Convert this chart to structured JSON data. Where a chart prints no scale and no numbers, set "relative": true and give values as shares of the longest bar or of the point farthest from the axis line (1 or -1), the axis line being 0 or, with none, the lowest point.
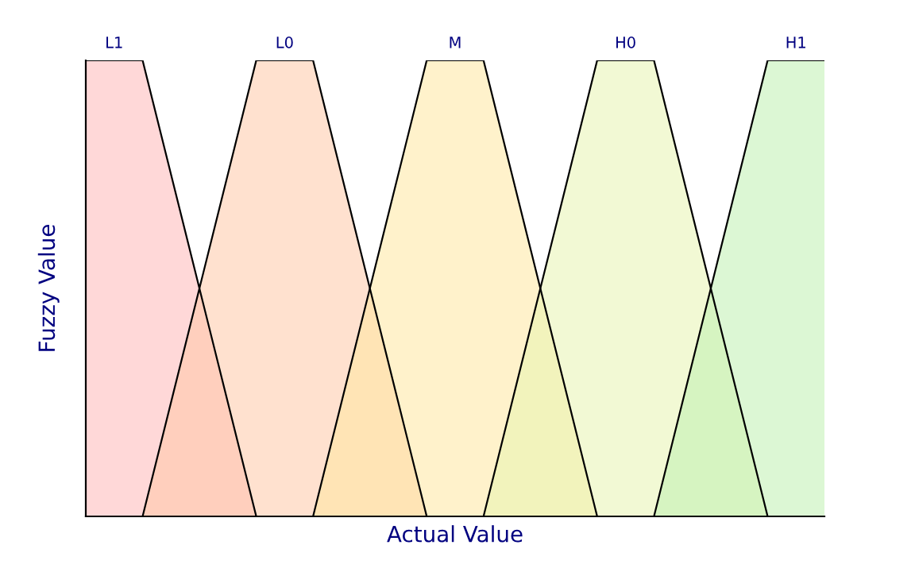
{
  "chart_data": {
    "type": "area",
    "relative": true,
    "xlabel": "Actual Value",
    "ylabel": "Fuzzy Value",
    "categories": [
      null,
      null,
      null,
      null,
      null,
      null,
      null,
      null,
      null,
      null,
      null,
      null,
      null,
      null
    ],
    "legend": false,
    "grid": false,
    "tick_labels": false,
    "series": [
      {
        "name": "L1",
        "color": "#ffb8b8",
        "values": [
          1,
          1,
          0.5,
          0,
          null,
          null,
          null,
          null,
          null,
          null,
          null,
          null,
          null,
          null
        ]
      },
      {
        "name": "L0",
        "color": "#ffc8a8",
        "values": [
          null,
          0,
          0.5,
          1,
          1,
          0.5,
          0,
          null,
          null,
          null,
          null,
          null,
          null,
          null
        ]
      },
      {
        "name": "M",
        "color": "#ffe8a0",
        "values": [
          null,
          null,
          null,
          null,
          0,
          0.5,
          1,
          1,
          0.5,
          0,
          null,
          null,
          null,
          null
        ]
      },
      {
        "name": "H0",
        "color": "#e8f4b0",
        "values": [
          null,
          null,
          null,
          null,
          null,
          null,
          null,
          0,
          0.5,
          1,
          1,
          0.5,
          0,
          null
        ]
      },
      {
        "name": "H1",
        "color": "#c0f0b0",
        "values": [
          null,
          null,
          null,
          null,
          null,
          null,
          null,
          null,
          null,
          null,
          0,
          0.5,
          1,
          1
        ]
      }
    ]
  }
}
